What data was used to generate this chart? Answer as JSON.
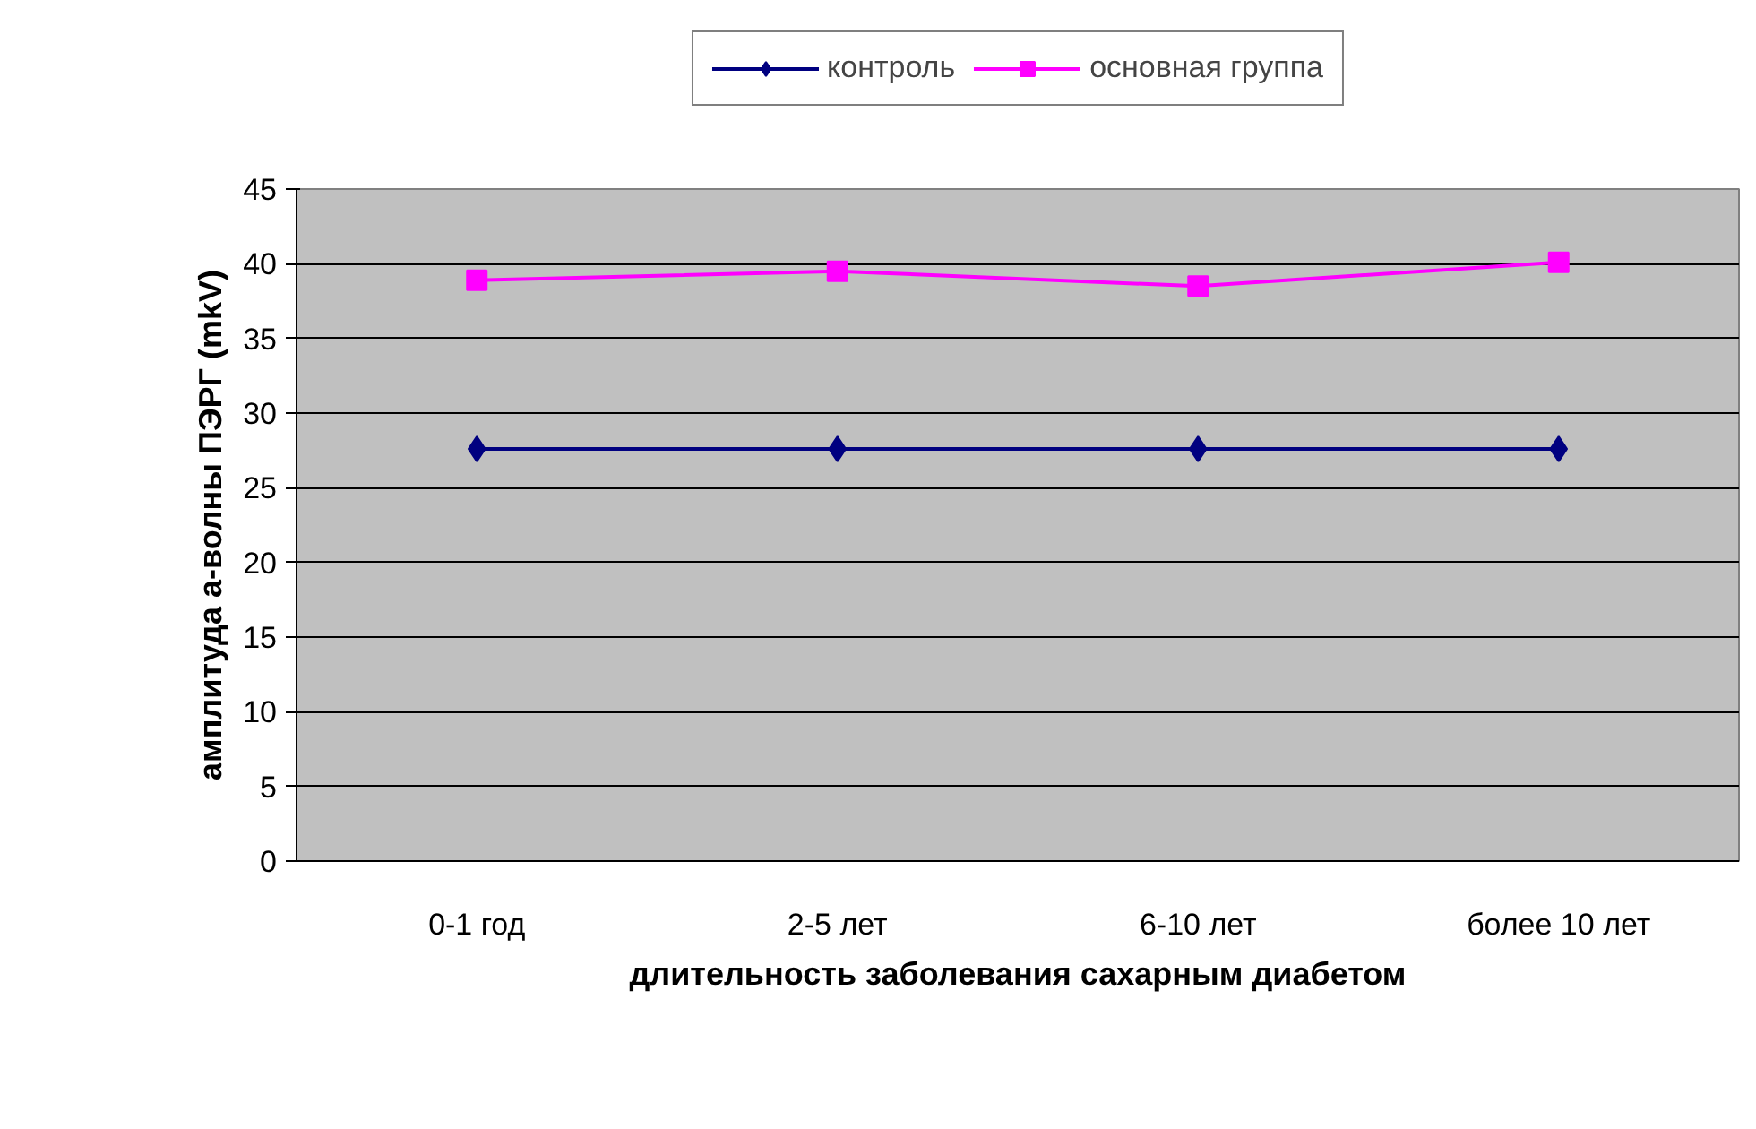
{
  "chart_data": {
    "type": "line",
    "xlabel": "длительность заболевания сахарным диабетом",
    "ylabel": "амплитуда а-волны ПЭРГ (mkV)",
    "categories": [
      "0-1 год",
      "2-5 лет",
      "6-10 лет",
      "более 10 лет"
    ],
    "series": [
      {
        "name": "контроль",
        "color": "#000080",
        "marker": "diamond",
        "values": [
          27.6,
          27.6,
          27.6,
          27.6
        ]
      },
      {
        "name": "основная группа",
        "color": "#ff00ff",
        "marker": "square",
        "values": [
          38.9,
          39.5,
          38.5,
          40.1
        ]
      }
    ],
    "ylim": [
      0,
      45
    ],
    "yticks": [
      0,
      5,
      10,
      15,
      20,
      25,
      30,
      35,
      40,
      45
    ],
    "grid": "y",
    "legend": "top"
  }
}
